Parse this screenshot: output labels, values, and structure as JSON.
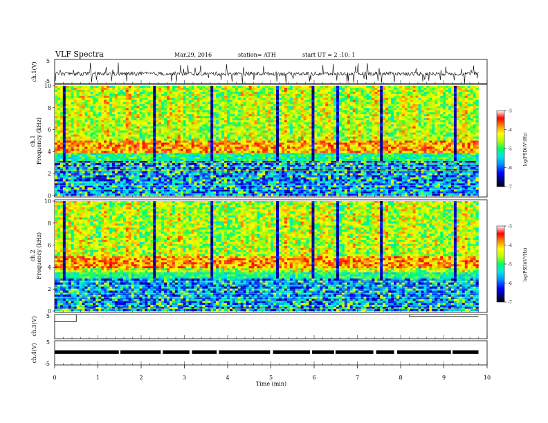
{
  "header": {
    "title": "VLF  Spectra",
    "date": "Mar.29, 2016",
    "station": "station= ATH",
    "start": "start  UT  =   2  :10: 1"
  },
  "chart_data": [
    {
      "type": "line",
      "ylabel": "ch.1(V)",
      "ylim": [
        -5,
        5
      ],
      "yticks": [
        "5",
        "-5"
      ],
      "x": [
        0,
        9.8
      ],
      "description_level": -0.9
    },
    {
      "type": "heatmap",
      "ylabel_top": "ch.1",
      "ylabel": "Frequency  (kHz)",
      "ylim": [
        0,
        10
      ],
      "yticks": [
        "0",
        "2",
        "4",
        "6",
        "8",
        "10"
      ],
      "xlim": [
        0,
        9.8
      ],
      "colorbar": {
        "label": "log(PSD)(V²/Hz)",
        "range": [
          -7,
          -3
        ],
        "ticks": [
          "-3",
          "-4",
          "-5",
          "-6",
          "-7"
        ]
      }
    },
    {
      "type": "heatmap",
      "ylabel_top": "ch.2",
      "ylabel": "Frequency  (kHz)",
      "ylim": [
        0,
        10
      ],
      "yticks": [
        "0",
        "2",
        "4",
        "6",
        "8",
        "10"
      ],
      "xlim": [
        0,
        9.8
      ],
      "colorbar": {
        "label": "log(PSD)(V²/Hz)",
        "range": [
          -7,
          -3
        ],
        "ticks": [
          "-3",
          "-4",
          "-5",
          "-6",
          "-7"
        ]
      }
    },
    {
      "type": "line",
      "ylabel": "ch.3(V)",
      "ylim": [
        -5,
        5
      ],
      "yticks": [
        "5"
      ],
      "segments": [
        [
          0,
          0.5,
          2.0
        ],
        [
          0.5,
          8.2,
          5.0
        ],
        [
          8.2,
          9.8,
          4.2
        ]
      ]
    },
    {
      "type": "line",
      "ylabel": "ch.4(V)",
      "ylim": [
        -5,
        5
      ],
      "yticks": [
        "5",
        "-5"
      ],
      "level": 0.3
    }
  ],
  "xaxis": {
    "label": "Time  (min)",
    "ticks": [
      "0",
      "1",
      "2",
      "3",
      "4",
      "5",
      "6",
      "7",
      "8",
      "9",
      "10"
    ],
    "range": [
      0,
      10
    ]
  },
  "colors": {
    "scale": [
      "#000000",
      "#00007a",
      "#0000ff",
      "#0096ff",
      "#00e5e5",
      "#00ff66",
      "#b4ff00",
      "#ffff00",
      "#ff8c00",
      "#ff0000",
      "#ffffff"
    ]
  }
}
